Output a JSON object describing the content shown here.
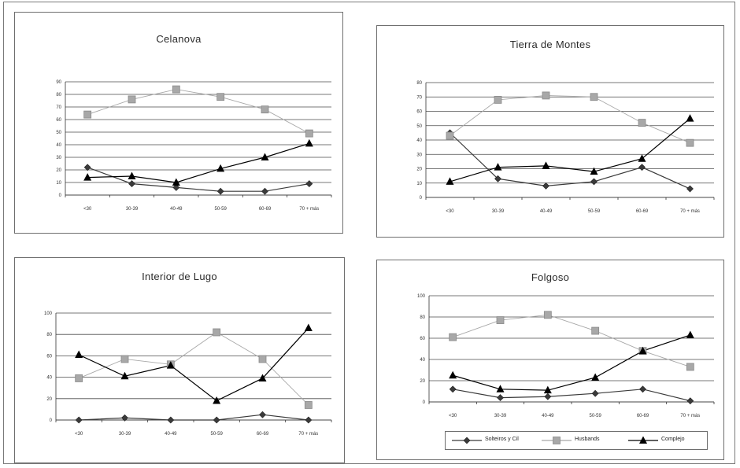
{
  "series_styles": {
    "Solteiros y Cil": {
      "color": "#3a3a3a",
      "marker": "diamond"
    },
    "Husbands": {
      "color": "#a8a8a8",
      "marker": "square"
    },
    "Complejo": {
      "color": "#000000",
      "marker": "triangle"
    }
  },
  "legend": {
    "items": [
      {
        "name": "Solteiros y Cil"
      },
      {
        "name": "Husbands"
      },
      {
        "name": "Complejo"
      }
    ]
  },
  "chart_data": [
    {
      "type": "line",
      "title": "Celanova",
      "categories": [
        "<30",
        "30-39",
        "40-49",
        "50-59",
        "60-69",
        "70 + más"
      ],
      "yticks": [
        "0",
        "10",
        "20",
        "30",
        "40",
        "50",
        "60",
        "70",
        "80",
        "90"
      ],
      "ylim": [
        0,
        90
      ],
      "grid": true,
      "series": [
        {
          "name": "Solteiros y Cil",
          "values": [
            22,
            9,
            6,
            3,
            3,
            9
          ]
        },
        {
          "name": "Husbands",
          "values": [
            64,
            76,
            84,
            78,
            68,
            49
          ]
        },
        {
          "name": "Complejo",
          "values": [
            14,
            15,
            10,
            21,
            30,
            41
          ]
        }
      ]
    },
    {
      "type": "line",
      "title": "Tierra de Montes",
      "categories": [
        "<30",
        "30-39",
        "40-49",
        "50-59",
        "60-69",
        "70 + más"
      ],
      "yticks": [
        "0",
        "10",
        "20",
        "30",
        "40",
        "50",
        "60",
        "70",
        "80"
      ],
      "ylim": [
        0,
        80
      ],
      "grid": true,
      "series": [
        {
          "name": "Solteiros y Cil",
          "values": [
            45,
            13,
            8,
            11,
            21,
            6
          ]
        },
        {
          "name": "Husbands",
          "values": [
            43,
            68,
            71,
            70,
            52,
            38
          ]
        },
        {
          "name": "Complejo",
          "values": [
            11,
            21,
            22,
            18,
            27,
            55
          ]
        }
      ]
    },
    {
      "type": "line",
      "title": "Interior de Lugo",
      "categories": [
        "<30",
        "30-39",
        "40-49",
        "50-59",
        "60-69",
        "70 + más"
      ],
      "yticks": [
        "0",
        "20",
        "40",
        "60",
        "80",
        "100"
      ],
      "ylim": [
        0,
        100
      ],
      "grid": true,
      "series": [
        {
          "name": "Solteiros y Cil",
          "values": [
            0,
            2,
            0,
            0,
            5,
            0
          ]
        },
        {
          "name": "Husbands",
          "values": [
            39,
            57,
            52,
            82,
            57,
            14
          ]
        },
        {
          "name": "Complejo",
          "values": [
            61,
            41,
            51,
            18,
            39,
            86
          ]
        }
      ]
    },
    {
      "type": "line",
      "title": "Folgoso",
      "categories": [
        "<30",
        "30-39",
        "40-49",
        "50-59",
        "60-69",
        "70 + más"
      ],
      "yticks": [
        "0",
        "20",
        "40",
        "60",
        "80",
        "100"
      ],
      "ylim": [
        0,
        100
      ],
      "grid": true,
      "series": [
        {
          "name": "Solteiros y Cil",
          "values": [
            12,
            4,
            5,
            8,
            12,
            1
          ]
        },
        {
          "name": "Husbands",
          "values": [
            61,
            77,
            82,
            67,
            48,
            33
          ]
        },
        {
          "name": "Complejo",
          "values": [
            25,
            12,
            11,
            23,
            48,
            63
          ]
        }
      ]
    }
  ]
}
